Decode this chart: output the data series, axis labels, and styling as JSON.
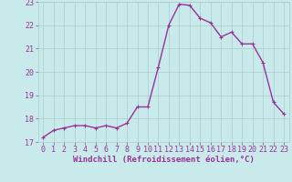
{
  "x": [
    0,
    1,
    2,
    3,
    4,
    5,
    6,
    7,
    8,
    9,
    10,
    11,
    12,
    13,
    14,
    15,
    16,
    17,
    18,
    19,
    20,
    21,
    22,
    23
  ],
  "y": [
    17.2,
    17.5,
    17.6,
    17.7,
    17.7,
    17.6,
    17.7,
    17.6,
    17.8,
    18.5,
    18.5,
    20.2,
    22.0,
    22.9,
    22.85,
    22.3,
    22.1,
    21.5,
    21.7,
    21.2,
    21.2,
    20.4,
    18.7,
    18.2
  ],
  "line_color": "#993399",
  "marker_color": "#993399",
  "bg_color": "#c8eaea",
  "grid_color": "#aacccc",
  "xlabel": "Windchill (Refroidissement éolien,°C)",
  "ylim": [
    17,
    23
  ],
  "xlim_min": -0.5,
  "xlim_max": 23.5,
  "yticks": [
    17,
    18,
    19,
    20,
    21,
    22,
    23
  ],
  "xticks": [
    0,
    1,
    2,
    3,
    4,
    5,
    6,
    7,
    8,
    9,
    10,
    11,
    12,
    13,
    14,
    15,
    16,
    17,
    18,
    19,
    20,
    21,
    22,
    23
  ],
  "font_color": "#993399",
  "line_width": 1.0,
  "marker_size": 2.5,
  "tick_fontsize": 6.0,
  "xlabel_fontsize": 6.5
}
